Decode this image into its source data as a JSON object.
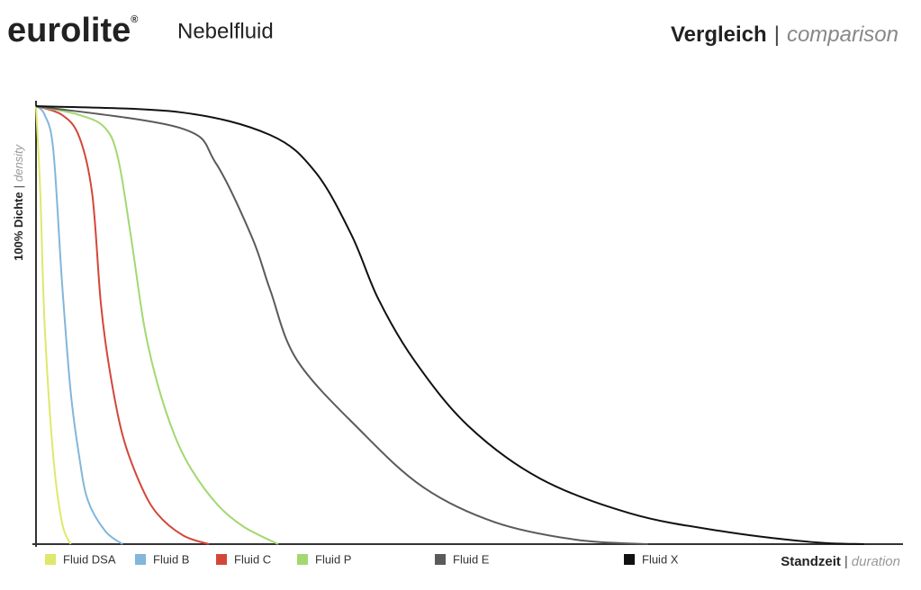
{
  "chart_data": {
    "type": "line",
    "title": "eurolite",
    "title_mark": "®",
    "subtitle": "Nebelfluid",
    "heading": {
      "de": "Vergleich",
      "sep": "|",
      "en": "comparison"
    },
    "ylabel": {
      "de": "100% Dichte",
      "sep": "|",
      "en": "density"
    },
    "xlabel": {
      "de": "Standzeit",
      "sep": "|",
      "en": "duration"
    },
    "xlim": [
      0,
      100
    ],
    "ylim": [
      0,
      100
    ],
    "series": [
      {
        "name": "Fluid DSA",
        "color": "#dfe86a",
        "x": [
          0,
          0.5,
          1,
          2,
          3,
          4
        ],
        "values": [
          100,
          80,
          50,
          20,
          5,
          0
        ]
      },
      {
        "name": "Fluid B",
        "color": "#82b6da",
        "x": [
          0,
          1,
          2,
          3,
          4,
          5,
          6,
          8,
          10
        ],
        "values": [
          100,
          98,
          90,
          60,
          35,
          20,
          10,
          3,
          0
        ]
      },
      {
        "name": "Fluid C",
        "color": "#d4463a",
        "x": [
          0,
          3,
          5,
          6.5,
          7.5,
          8.5,
          10,
          12,
          14,
          17,
          20
        ],
        "values": [
          100,
          98,
          93,
          80,
          55,
          40,
          25,
          14,
          7,
          2,
          0
        ]
      },
      {
        "name": "Fluid P",
        "color": "#a2d872",
        "x": [
          0,
          5,
          8,
          9.5,
          11,
          12.5,
          14,
          16,
          18,
          21,
          24,
          28
        ],
        "values": [
          100,
          98,
          95,
          88,
          70,
          50,
          37,
          25,
          17,
          9,
          4,
          0
        ]
      },
      {
        "name": "Fluid E",
        "color": "#5a5a5a",
        "x": [
          0,
          16.7,
          20.8,
          25,
          27.1,
          30.2,
          37.5,
          44.8,
          53.1,
          62.5,
          70.8
        ],
        "values": [
          100,
          95,
          87,
          70,
          58,
          42,
          26,
          13,
          5,
          1,
          0
        ]
      },
      {
        "name": "Fluid X",
        "color": "#111111",
        "x": [
          0,
          16.7,
          27.1,
          32.3,
          36.5,
          39.6,
          43.75,
          50,
          58.3,
          68.8,
          79.2,
          89.6,
          95.8
        ],
        "values": [
          100,
          98.6,
          93.4,
          85,
          70.6,
          56,
          42,
          27,
          15,
          7,
          3,
          0.5,
          0
        ]
      }
    ]
  }
}
